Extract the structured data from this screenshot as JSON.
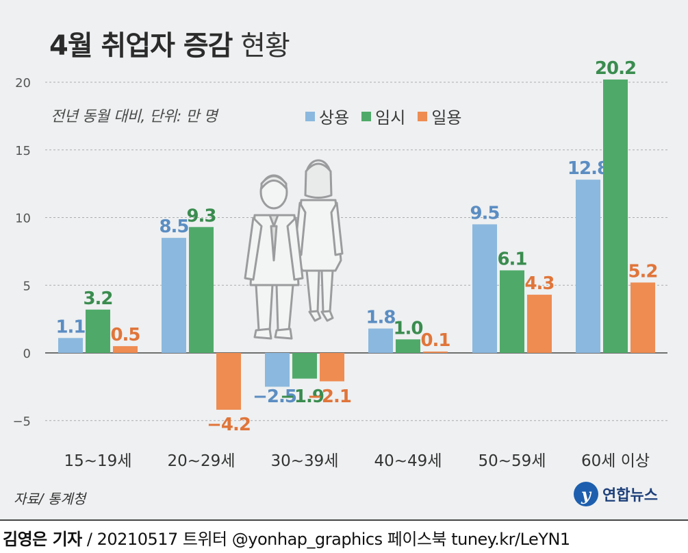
{
  "title": {
    "bold": "4월 취업자 증감",
    "light": "현황"
  },
  "subtitle": "전년 동월 대비, 단위: 만 명",
  "source": "자료/ 통계청",
  "logo": {
    "mark": "y",
    "text": "연합뉴스"
  },
  "footer": {
    "reporter": "김영은 기자",
    "rest": " / 20210517  트위터 @yonhap_graphics  페이스북 tuney.kr/LeYN1"
  },
  "colors": {
    "background": "#eef0f1",
    "상용": "#8bb8de",
    "임시": "#4faa69",
    "일용": "#ee8c52",
    "label_상용": "#5b8dc2",
    "label_임시": "#3a8c4f",
    "label_일용": "#e0753a"
  },
  "illustration": "businessman-and-businesswoman-icon",
  "chart_data": {
    "type": "bar",
    "title": "4월 취업자 증감 현황",
    "subtitle": "전년 동월 대비, 단위: 만 명",
    "categories": [
      "15~19세",
      "20~29세",
      "30~39세",
      "40~49세",
      "50~59세",
      "60세 이상"
    ],
    "series": [
      {
        "name": "상용",
        "values": [
          1.1,
          8.5,
          -2.5,
          1.8,
          9.5,
          12.8
        ],
        "labels": [
          "1.1",
          "8.5",
          "−2.5",
          "1.8",
          "9.5",
          "12.8"
        ]
      },
      {
        "name": "임시",
        "values": [
          3.2,
          9.3,
          -1.9,
          1.0,
          6.1,
          20.2
        ],
        "labels": [
          "3.2",
          "9.3",
          "−1.9",
          "1.0",
          "6.1",
          "20.2"
        ]
      },
      {
        "name": "일용",
        "values": [
          0.5,
          -4.2,
          -2.1,
          0.1,
          4.3,
          5.2
        ],
        "labels": [
          "0.5",
          "−4.2",
          "−2.1",
          "0.1",
          "4.3",
          "5.2"
        ]
      }
    ],
    "yticks": [
      "20",
      "15",
      "10",
      "5",
      "0",
      "−5"
    ],
    "ytick_values": [
      20,
      15,
      10,
      5,
      0,
      -5
    ],
    "ylim": [
      -7,
      21
    ],
    "grid": true,
    "legend": "top"
  }
}
